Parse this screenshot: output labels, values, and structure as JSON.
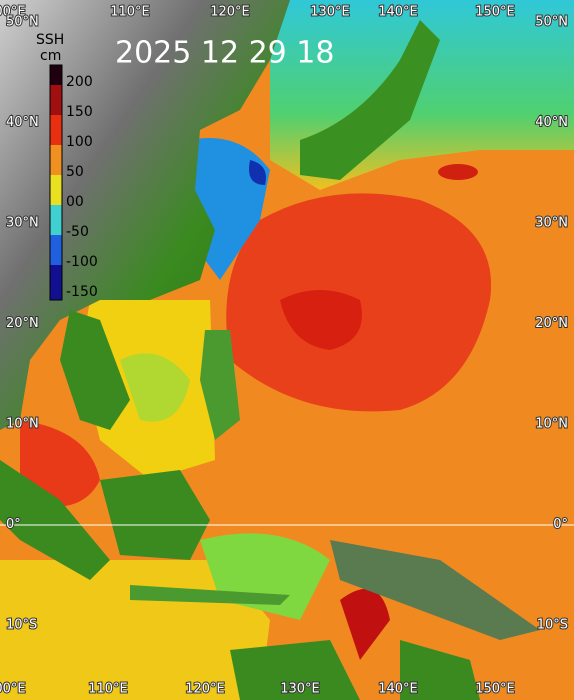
{
  "title": "2025 12 29 18",
  "colorbar": {
    "label": "SSH",
    "unit": "cm",
    "ticks": [
      "200",
      "150",
      "100",
      "50",
      "00",
      "-50",
      "-100",
      "-150"
    ]
  },
  "lon_labels": [
    "00°E",
    "110°E",
    "120°E",
    "130°E",
    "140°E",
    "150°E"
  ],
  "lat_labels": [
    "50°N",
    "40°N",
    "30°N",
    "20°N",
    "10°N",
    "0°",
    "10°S"
  ]
}
